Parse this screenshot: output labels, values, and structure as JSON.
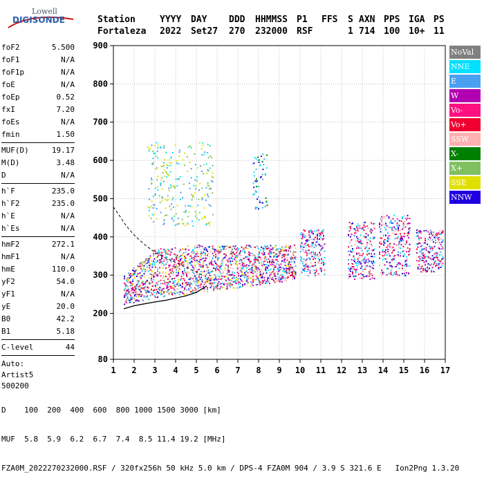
{
  "logo": {
    "line1": "Lowell",
    "line2": "DIGISONDE"
  },
  "header": {
    "station_label": "Station",
    "station": "Fortaleza",
    "yyyy_label": "YYYY",
    "yyyy": "2022",
    "day_label": "DAY",
    "day": "Set27",
    "ddd_label": "DDD",
    "ddd": "270",
    "hhmmss_label": "HHMMSS",
    "hhmmss": "232000",
    "p1_label": "P1",
    "p1": "RSF",
    "ffs_label": "FFS",
    "ffs": "",
    "s_label": "S",
    "s": "1",
    "axn_label": "AXN",
    "axn": "714",
    "pps_label": "PPS",
    "pps": "100",
    "iga_label": "IGA",
    "iga": "10+",
    "ps_label": "PS",
    "ps": "11"
  },
  "params": [
    [
      {
        "name": "foF2",
        "value": "5.500"
      },
      {
        "name": "foF1",
        "value": "N/A"
      },
      {
        "name": "foF1p",
        "value": "N/A"
      },
      {
        "name": "foE",
        "value": "N/A"
      },
      {
        "name": "foEp",
        "value": "0.52"
      },
      {
        "name": "fxI",
        "value": "7.20"
      },
      {
        "name": "foEs",
        "value": "N/A"
      },
      {
        "name": "fmin",
        "value": "1.50"
      }
    ],
    [
      {
        "name": "MUF(D)",
        "value": "19.17"
      },
      {
        "name": "M(D)",
        "value": "3.48"
      },
      {
        "name": "D",
        "value": "N/A"
      }
    ],
    [
      {
        "name": "h`F",
        "value": "235.0"
      },
      {
        "name": "h`F2",
        "value": "235.0"
      },
      {
        "name": "h`E",
        "value": "N/A"
      },
      {
        "name": "h`Es",
        "value": "N/A"
      }
    ],
    [
      {
        "name": "hmF2",
        "value": "272.1"
      },
      {
        "name": "hmF1",
        "value": "N/A"
      },
      {
        "name": "hmE",
        "value": "110.0"
      },
      {
        "name": "yF2",
        "value": "54.0"
      },
      {
        "name": "yF1",
        "value": "N/A"
      },
      {
        "name": "yE",
        "value": "20.0"
      },
      {
        "name": "B0",
        "value": "42.2"
      },
      {
        "name": "B1",
        "value": "5.18"
      }
    ],
    [
      {
        "name": "C-level",
        "value": "44"
      }
    ]
  ],
  "auto": {
    "line1": "Auto:",
    "line2": "Artist5",
    "line3": "500200"
  },
  "legend": [
    {
      "label": "NoVal",
      "color": "#808080"
    },
    {
      "label": "NNE",
      "color": "#00e0ff"
    },
    {
      "label": "E",
      "color": "#4aa0f0"
    },
    {
      "label": "W",
      "color": "#b000b0"
    },
    {
      "label": "Vo-",
      "color": "#ff1080"
    },
    {
      "label": "Vo+",
      "color": "#f00030"
    },
    {
      "label": "SSW",
      "color": "#ffb0b0"
    },
    {
      "label": "X-",
      "color": "#008000"
    },
    {
      "label": "X+",
      "color": "#80c060"
    },
    {
      "label": "SSE",
      "color": "#e0e000"
    },
    {
      "label": "NNW",
      "color": "#2000e0"
    }
  ],
  "footer": {
    "d_label": "D",
    "d_values": "100  200  400  600  800 1000 1500 3000 [km]",
    "muf_label": "MUF",
    "muf_values": "5.8  5.9  6.2  6.7  7.4  8.5 11.4 19.2 [MHz]",
    "info": "FZA0M_2022270232000.RSF / 320fx256h 50 kHz 5.0 km / DPS-4 FZA0M 904 / 3.9 S 321.6 E   Ion2Png 1.3.20"
  },
  "chart_data": {
    "type": "scatter",
    "xlabel": "",
    "ylabel": "",
    "xlim": [
      1,
      17
    ],
    "ylim": [
      80,
      900
    ],
    "x_ticks": [
      1,
      2,
      3,
      4,
      5,
      6,
      7,
      8,
      9,
      10,
      11,
      12,
      13,
      14,
      15,
      16,
      17
    ],
    "y_ticks": [
      80,
      200,
      300,
      400,
      500,
      600,
      700,
      800,
      900
    ],
    "y_tick_labels": [
      "80",
      "200",
      "300",
      "400",
      "500",
      "600",
      "700",
      "800",
      "900"
    ],
    "grid": true,
    "legend_position": "right",
    "traces": [
      {
        "name": "echo-band",
        "x_range": [
          1.5,
          9.8
        ],
        "y_base": [
          [
            1.5,
            225
          ],
          [
            3,
            240
          ],
          [
            5,
            255
          ],
          [
            6,
            262
          ],
          [
            8,
            275
          ],
          [
            9.8,
            290
          ]
        ],
        "y_top": [
          [
            1.5,
            300
          ],
          [
            3,
            370
          ],
          [
            5,
            380
          ],
          [
            7,
            380
          ],
          [
            9.8,
            380
          ]
        ]
      },
      {
        "name": "echo-blocks",
        "blocks": [
          [
            10,
            11.2,
            300,
            420
          ],
          [
            12.3,
            13.6,
            290,
            440
          ],
          [
            13.8,
            15.3,
            300,
            460
          ],
          [
            15.6,
            16.9,
            310,
            420
          ]
        ]
      },
      {
        "name": "profile-curve",
        "points": [
          [
            1.5,
            212
          ],
          [
            2.0,
            220
          ],
          [
            2.5,
            225
          ],
          [
            3.0,
            230
          ],
          [
            3.5,
            234
          ],
          [
            4.0,
            240
          ],
          [
            4.5,
            246
          ],
          [
            5.0,
            255
          ],
          [
            5.3,
            265
          ],
          [
            5.5,
            272
          ]
        ]
      },
      {
        "name": "dashed-curve",
        "points": [
          [
            1.0,
            478
          ],
          [
            1.3,
            455
          ],
          [
            1.6,
            430
          ],
          [
            2.0,
            405
          ],
          [
            2.5,
            380
          ],
          [
            3.0,
            360
          ],
          [
            3.5,
            345
          ],
          [
            4.0,
            333
          ],
          [
            4.5,
            320
          ],
          [
            5.0,
            308
          ],
          [
            5.3,
            300
          ]
        ]
      }
    ]
  }
}
